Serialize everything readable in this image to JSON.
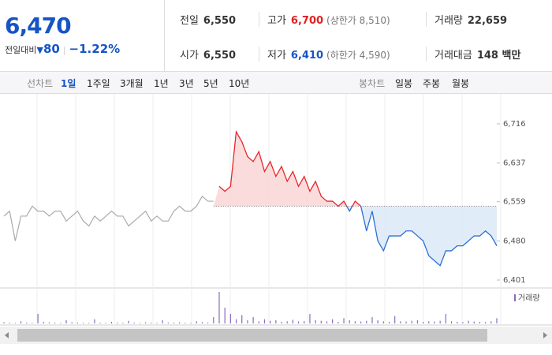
{
  "quote": {
    "price": "6,470",
    "change_label": "전일대비",
    "change": 80,
    "change_rate": "−1.22%"
  },
  "stats": [
    {
      "label": "전일",
      "value": "6,550"
    },
    {
      "label": "고가",
      "value": "6,700",
      "note": "(상한가 8,510)"
    },
    {
      "label": "거래량",
      "value": "22,659"
    },
    {
      "label": "시가",
      "value": "6,550"
    },
    {
      "label": "저가",
      "value": "6,410",
      "note": "(하한가 4,590)"
    },
    {
      "label": "거래대금",
      "value": "148 백만"
    }
  ],
  "tabs": {
    "line_label": "선차트",
    "line_items": [
      "1일",
      "1주일",
      "3개월",
      "1년",
      "3년",
      "5년",
      "10년"
    ],
    "candle_label": "봉차트",
    "candle_items": [
      "일봉",
      "주봉",
      "월봉"
    ]
  },
  "chart_data": {
    "type": "line",
    "ylim": [
      6401,
      6716
    ],
    "yticks": [
      {
        "value": 6716,
        "label": "6,716"
      },
      {
        "value": 6637,
        "label": "6,637"
      },
      {
        "value": 6559,
        "label": "6,559"
      },
      {
        "value": 6480,
        "label": "6,480"
      },
      {
        "value": 6401,
        "label": "6,401"
      }
    ],
    "base_value": 6550,
    "prev_color": "#aaaaaa",
    "up_color": "#e8262a",
    "down_color": "#2a6fd6",
    "prev_values": [
      6530,
      6540,
      6480,
      6530,
      6530,
      6550,
      6540,
      6540,
      6530,
      6540,
      6540,
      6520,
      6530,
      6540,
      6520,
      6510,
      6530,
      6520,
      6530,
      6540,
      6530,
      6530,
      6510,
      6520,
      6530,
      6540,
      6520,
      6530,
      6520,
      6520,
      6540,
      6550,
      6540,
      6540,
      6550,
      6570,
      6560,
      6560
    ],
    "values": [
      6590,
      6580,
      6590,
      6700,
      6680,
      6650,
      6640,
      6660,
      6620,
      6640,
      6610,
      6630,
      6600,
      6620,
      6590,
      6610,
      6580,
      6600,
      6570,
      6560,
      6560,
      6550,
      6560,
      6540,
      6560,
      6550,
      6500,
      6540,
      6480,
      6460,
      6490,
      6490,
      6490,
      6500,
      6500,
      6490,
      6480,
      6450,
      6440,
      6430,
      6460,
      6460,
      6470,
      6470,
      6480,
      6490,
      6490,
      6500,
      6490,
      6470
    ],
    "volume": {
      "legend": "거래량",
      "color": "#8a6bbf",
      "values": [
        120,
        80,
        60,
        200,
        90,
        60,
        900,
        150,
        100,
        80,
        60,
        300,
        120,
        90,
        70,
        60,
        400,
        80,
        60,
        150,
        90,
        70,
        250,
        80,
        60,
        100,
        80,
        70,
        300,
        90,
        80,
        110,
        70,
        60,
        200,
        120,
        90,
        600,
        3000,
        1500,
        900,
        400,
        800,
        300,
        600,
        200,
        400,
        250,
        300,
        150,
        200,
        350,
        180,
        220,
        900,
        300,
        250,
        200,
        400,
        150,
        500,
        300,
        200,
        180,
        250,
        600,
        300,
        200,
        150,
        700,
        200,
        180,
        250,
        300,
        150,
        200,
        180,
        250,
        900,
        200,
        150,
        120,
        250,
        180,
        150,
        120,
        200,
        500
      ]
    }
  }
}
